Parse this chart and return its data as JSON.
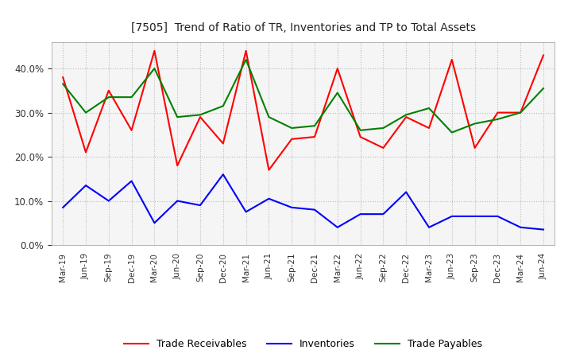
{
  "title": "[7505]  Trend of Ratio of TR, Inventories and TP to Total Assets",
  "x_labels": [
    "Mar-19",
    "Jun-19",
    "Sep-19",
    "Dec-19",
    "Mar-20",
    "Jun-20",
    "Sep-20",
    "Dec-20",
    "Mar-21",
    "Jun-21",
    "Sep-21",
    "Dec-21",
    "Mar-22",
    "Jun-22",
    "Sep-22",
    "Dec-22",
    "Mar-23",
    "Jun-23",
    "Sep-23",
    "Dec-23",
    "Mar-24",
    "Jun-24"
  ],
  "trade_receivables": [
    0.38,
    0.21,
    0.35,
    0.26,
    0.44,
    0.18,
    0.29,
    0.23,
    0.44,
    0.17,
    0.24,
    0.245,
    0.4,
    0.245,
    0.22,
    0.29,
    0.265,
    0.42,
    0.22,
    0.3,
    0.3,
    0.43
  ],
  "inventories": [
    0.085,
    0.135,
    0.1,
    0.145,
    0.05,
    0.1,
    0.09,
    0.16,
    0.075,
    0.105,
    0.085,
    0.08,
    0.04,
    0.07,
    0.07,
    0.12,
    0.04,
    0.065,
    0.065,
    0.065,
    0.04,
    0.035
  ],
  "trade_payables": [
    0.365,
    0.3,
    0.335,
    0.335,
    0.4,
    0.29,
    0.295,
    0.315,
    0.42,
    0.29,
    0.265,
    0.27,
    0.345,
    0.26,
    0.265,
    0.295,
    0.31,
    0.255,
    0.275,
    0.285,
    0.3,
    0.355
  ],
  "ylim": [
    0.0,
    0.46
  ],
  "yticks": [
    0.0,
    0.1,
    0.2,
    0.3,
    0.4
  ],
  "line_colors": {
    "trade_receivables": "#ff0000",
    "inventories": "#0000ff",
    "trade_payables": "#008000"
  },
  "legend_labels": [
    "Trade Receivables",
    "Inventories",
    "Trade Payables"
  ],
  "background_color": "#ffffff",
  "plot_bg_color": "#f5f5f5",
  "grid_color": "#bbbbbb"
}
